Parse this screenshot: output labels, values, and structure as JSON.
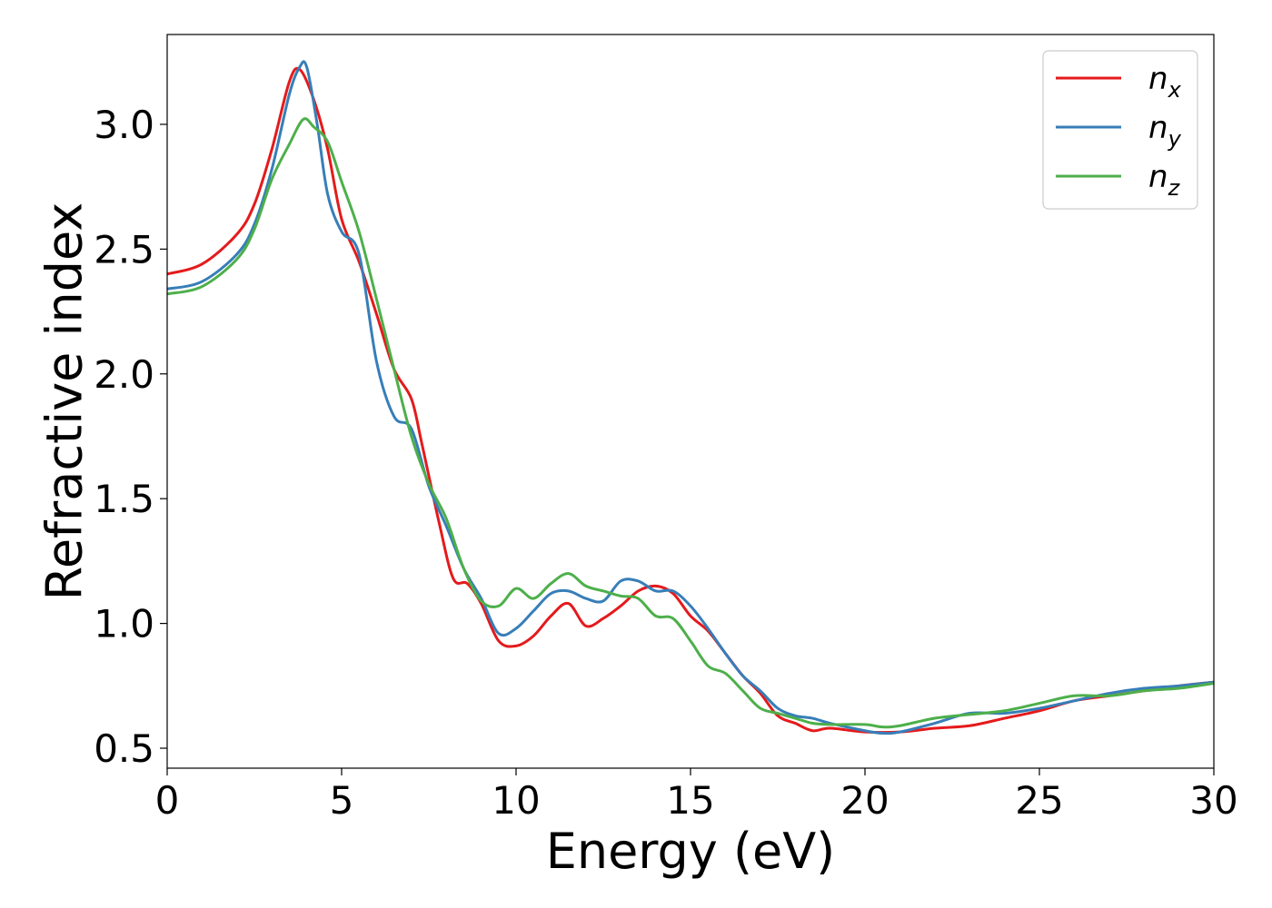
{
  "chart_data": {
    "type": "line",
    "xlabel": "Energy (eV)",
    "ylabel": "Refractive index",
    "xlim": [
      0,
      30
    ],
    "ylim": [
      0.42,
      3.36
    ],
    "xticks": [
      0,
      5,
      10,
      15,
      20,
      25,
      30
    ],
    "xtick_labels": [
      "0",
      "5",
      "10",
      "15",
      "20",
      "25",
      "30"
    ],
    "yticks": [
      0.5,
      1.0,
      1.5,
      2.0,
      2.5,
      3.0
    ],
    "ytick_labels": [
      "0.5",
      "1.0",
      "1.5",
      "2.0",
      "2.5",
      "3.0"
    ],
    "grid": false,
    "legend_position": "top-right",
    "series": [
      {
        "name": "n",
        "subscript": "x",
        "color": "#e41a1c",
        "points": [
          [
            0,
            2.4
          ],
          [
            1,
            2.44
          ],
          [
            2,
            2.56
          ],
          [
            2.5,
            2.68
          ],
          [
            3,
            2.9
          ],
          [
            3.5,
            3.17
          ],
          [
            3.8,
            3.22
          ],
          [
            4.2,
            3.1
          ],
          [
            4.6,
            2.9
          ],
          [
            5,
            2.62
          ],
          [
            5.5,
            2.45
          ],
          [
            6,
            2.24
          ],
          [
            6.5,
            2.02
          ],
          [
            7,
            1.9
          ],
          [
            7.3,
            1.72
          ],
          [
            7.8,
            1.4
          ],
          [
            8.2,
            1.18
          ],
          [
            8.6,
            1.16
          ],
          [
            9,
            1.08
          ],
          [
            9.5,
            0.93
          ],
          [
            10,
            0.91
          ],
          [
            10.5,
            0.95
          ],
          [
            11,
            1.03
          ],
          [
            11.5,
            1.08
          ],
          [
            12,
            0.99
          ],
          [
            12.5,
            1.02
          ],
          [
            13,
            1.07
          ],
          [
            13.5,
            1.13
          ],
          [
            14,
            1.15
          ],
          [
            14.5,
            1.12
          ],
          [
            15,
            1.03
          ],
          [
            15.5,
            0.97
          ],
          [
            16,
            0.88
          ],
          [
            16.5,
            0.79
          ],
          [
            17,
            0.72
          ],
          [
            17.5,
            0.63
          ],
          [
            18,
            0.6
          ],
          [
            18.5,
            0.57
          ],
          [
            19,
            0.58
          ],
          [
            20,
            0.565
          ],
          [
            21,
            0.565
          ],
          [
            22,
            0.58
          ],
          [
            23,
            0.59
          ],
          [
            24,
            0.62
          ],
          [
            25,
            0.65
          ],
          [
            26,
            0.69
          ],
          [
            27,
            0.71
          ],
          [
            28,
            0.73
          ],
          [
            29,
            0.75
          ],
          [
            30,
            0.765
          ]
        ]
      },
      {
        "name": "n",
        "subscript": "y",
        "color": "#377eb8",
        "points": [
          [
            0,
            2.34
          ],
          [
            1,
            2.37
          ],
          [
            2,
            2.48
          ],
          [
            2.5,
            2.6
          ],
          [
            3,
            2.82
          ],
          [
            3.5,
            3.12
          ],
          [
            3.8,
            3.23
          ],
          [
            4,
            3.23
          ],
          [
            4.3,
            3.0
          ],
          [
            4.6,
            2.72
          ],
          [
            5,
            2.57
          ],
          [
            5.5,
            2.48
          ],
          [
            6,
            2.05
          ],
          [
            6.5,
            1.83
          ],
          [
            7,
            1.78
          ],
          [
            7.5,
            1.55
          ],
          [
            8,
            1.39
          ],
          [
            8.5,
            1.22
          ],
          [
            9,
            1.1
          ],
          [
            9.5,
            0.96
          ],
          [
            10,
            0.98
          ],
          [
            10.5,
            1.05
          ],
          [
            11,
            1.12
          ],
          [
            11.5,
            1.13
          ],
          [
            12,
            1.1
          ],
          [
            12.5,
            1.09
          ],
          [
            13,
            1.17
          ],
          [
            13.5,
            1.17
          ],
          [
            14,
            1.13
          ],
          [
            14.5,
            1.13
          ],
          [
            15,
            1.07
          ],
          [
            15.5,
            0.98
          ],
          [
            16,
            0.88
          ],
          [
            16.5,
            0.79
          ],
          [
            17,
            0.73
          ],
          [
            17.5,
            0.66
          ],
          [
            18,
            0.63
          ],
          [
            18.5,
            0.62
          ],
          [
            19,
            0.6
          ],
          [
            20,
            0.57
          ],
          [
            20.5,
            0.56
          ],
          [
            21,
            0.565
          ],
          [
            22,
            0.6
          ],
          [
            23,
            0.64
          ],
          [
            24,
            0.64
          ],
          [
            25,
            0.66
          ],
          [
            26,
            0.69
          ],
          [
            27,
            0.72
          ],
          [
            28,
            0.74
          ],
          [
            29,
            0.75
          ],
          [
            30,
            0.765
          ]
        ]
      },
      {
        "name": "n",
        "subscript": "z",
        "color": "#4daf4a",
        "points": [
          [
            0,
            2.32
          ],
          [
            1,
            2.35
          ],
          [
            2,
            2.46
          ],
          [
            2.5,
            2.58
          ],
          [
            3,
            2.78
          ],
          [
            3.5,
            2.92
          ],
          [
            3.9,
            3.02
          ],
          [
            4.2,
            2.99
          ],
          [
            4.6,
            2.93
          ],
          [
            5,
            2.77
          ],
          [
            5.5,
            2.57
          ],
          [
            6,
            2.3
          ],
          [
            6.5,
            2.02
          ],
          [
            7,
            1.75
          ],
          [
            7.5,
            1.56
          ],
          [
            8,
            1.42
          ],
          [
            8.5,
            1.22
          ],
          [
            9,
            1.09
          ],
          [
            9.5,
            1.07
          ],
          [
            10,
            1.14
          ],
          [
            10.5,
            1.1
          ],
          [
            11,
            1.16
          ],
          [
            11.5,
            1.2
          ],
          [
            12,
            1.15
          ],
          [
            12.5,
            1.13
          ],
          [
            13,
            1.11
          ],
          [
            13.5,
            1.1
          ],
          [
            14,
            1.03
          ],
          [
            14.5,
            1.02
          ],
          [
            15,
            0.93
          ],
          [
            15.5,
            0.83
          ],
          [
            16,
            0.8
          ],
          [
            16.5,
            0.73
          ],
          [
            17,
            0.66
          ],
          [
            17.5,
            0.64
          ],
          [
            18,
            0.62
          ],
          [
            18.5,
            0.6
          ],
          [
            19,
            0.595
          ],
          [
            20,
            0.595
          ],
          [
            20.5,
            0.585
          ],
          [
            21,
            0.59
          ],
          [
            22,
            0.62
          ],
          [
            23,
            0.635
          ],
          [
            24,
            0.65
          ],
          [
            25,
            0.68
          ],
          [
            26,
            0.71
          ],
          [
            27,
            0.71
          ],
          [
            28,
            0.73
          ],
          [
            29,
            0.74
          ],
          [
            30,
            0.76
          ]
        ]
      }
    ]
  }
}
